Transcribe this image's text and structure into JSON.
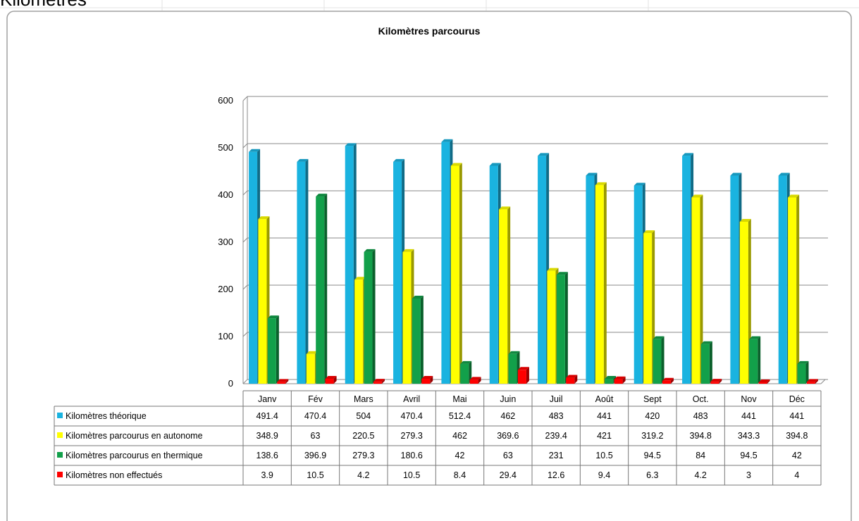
{
  "sheet_title": "Kilomètres",
  "chart_data": {
    "type": "bar",
    "title": "Kilomètres  parcourus",
    "categories": [
      "Janv",
      "Fév",
      "Mars",
      "Avril",
      "Mai",
      "Juin",
      "Juil",
      "Août",
      "Sept",
      "Oct.",
      "Nov",
      "Déc"
    ],
    "series": [
      {
        "name": "Kilomètres théorique",
        "color": "#1ab3e0",
        "values": [
          491.4,
          470.4,
          504,
          470.4,
          512.4,
          462,
          483,
          441,
          420,
          483,
          441,
          441
        ]
      },
      {
        "name": "Kilomètres parcourus en autonome",
        "color": "#ffff00",
        "values": [
          348.9,
          63,
          220.5,
          279.3,
          462,
          369.6,
          239.4,
          421,
          319.2,
          394.8,
          343.3,
          394.8
        ]
      },
      {
        "name": "Kilomètres parcourus en thermique",
        "color": "#12a04a",
        "values": [
          138.6,
          396.9,
          279.3,
          180.6,
          42,
          63,
          231,
          10.5,
          94.5,
          84,
          94.5,
          42
        ]
      },
      {
        "name": "Kilomètres non effectués",
        "color": "#ff0000",
        "values": [
          3.9,
          10.5,
          4.2,
          10.5,
          8.4,
          29.4,
          12.6,
          9.4,
          6.3,
          4.2,
          3,
          4
        ]
      }
    ],
    "ylim": [
      0,
      600
    ],
    "yticks": [
      0,
      100,
      200,
      300,
      400,
      500,
      600
    ],
    "grid": true,
    "data_table": true
  }
}
